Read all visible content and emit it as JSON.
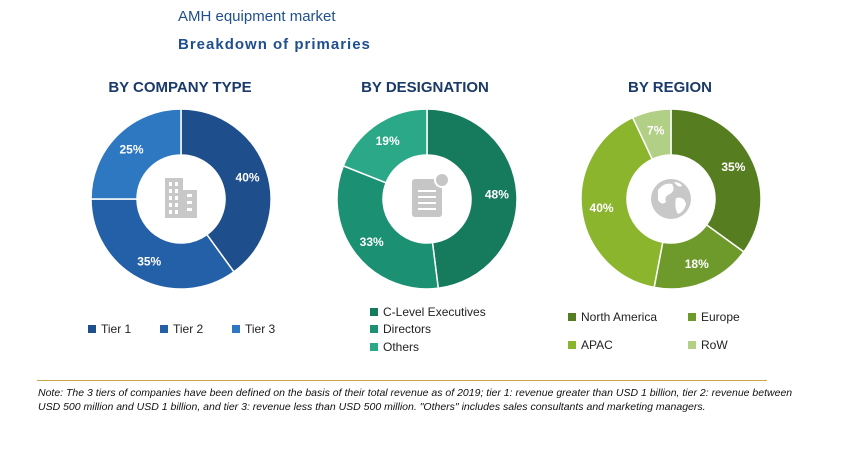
{
  "header": {
    "title": "AMH equipment market",
    "subtitle": "Breakdown of primaries"
  },
  "chart_data": [
    {
      "type": "pie",
      "title": "BY COMPANY TYPE",
      "categories": [
        "Tier 1",
        "Tier 2",
        "Tier 3"
      ],
      "values": [
        40,
        35,
        25
      ],
      "labels": [
        "40%",
        "35%",
        "25%"
      ],
      "colors": [
        "#1f4e8c",
        "#2460a8",
        "#2e78c2"
      ],
      "center_icon": "building-icon"
    },
    {
      "type": "pie",
      "title": "BY DESIGNATION",
      "categories": [
        "C-Level Executives",
        "Directors",
        "Others"
      ],
      "values": [
        48,
        33,
        19
      ],
      "labels": [
        "48%",
        "33%",
        "19%"
      ],
      "colors": [
        "#167a5c",
        "#1b9072",
        "#2aa887"
      ],
      "center_icon": "document-icon"
    },
    {
      "type": "pie",
      "title": "BY REGION",
      "categories": [
        "North America",
        "Europe",
        "APAC",
        "RoW"
      ],
      "values": [
        35,
        18,
        40,
        7
      ],
      "labels": [
        "35%",
        "18%",
        "40%",
        "7%"
      ],
      "colors": [
        "#567d20",
        "#6d9a2a",
        "#8ab52c",
        "#b2cf86"
      ],
      "center_icon": "globe-icon"
    }
  ],
  "footer": {
    "note": "Note: The 3 tiers of companies have been defined on the basis of their total revenue as of 2019; tier 1: revenue greater than USD 1 billion, tier 2: revenue between USD 500 million and USD 1 billion, and tier 3: revenue less than USD 500 million. \"Others\" includes sales consultants and marketing managers."
  }
}
